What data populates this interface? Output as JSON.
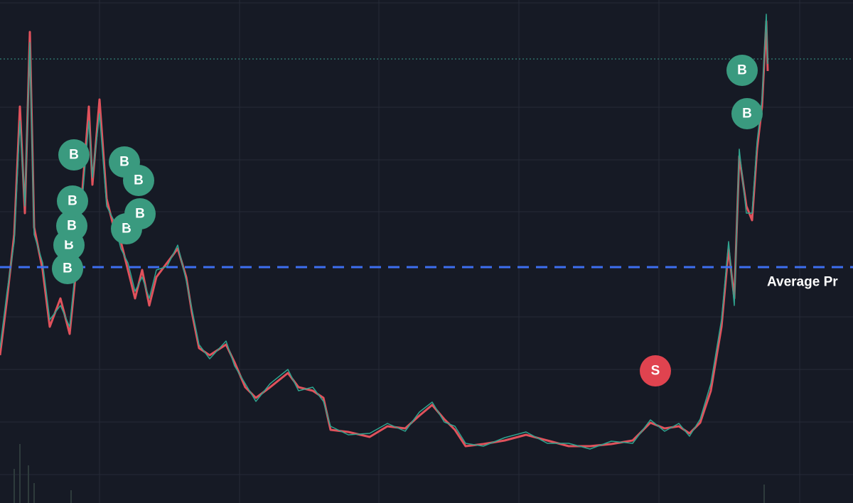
{
  "markers": [
    {
      "label": "B"
    },
    {
      "label": "B"
    },
    {
      "label": "B"
    },
    {
      "label": "B"
    },
    {
      "label": "B"
    },
    {
      "label": "B"
    },
    {
      "label": "B"
    },
    {
      "label": "B"
    },
    {
      "label": "B"
    },
    {
      "label": "B"
    },
    {
      "label": "B"
    },
    {
      "label": "S"
    }
  ],
  "average_price_label": "Average Pr"
}
